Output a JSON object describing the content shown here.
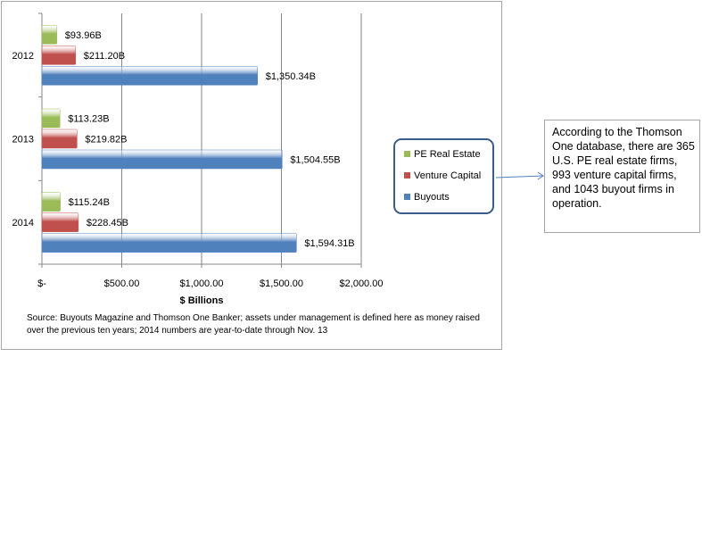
{
  "chart_data": {
    "type": "bar",
    "orientation": "horizontal",
    "categories": [
      "2012",
      "2013",
      "2014"
    ],
    "series": [
      {
        "name": "PE Real Estate",
        "color": "#9bbb59",
        "values": [
          93.96,
          113.23,
          115.24
        ],
        "labels": [
          "$93.96B",
          "$113.23B",
          "$115.24B"
        ]
      },
      {
        "name": "Venture Capital",
        "color": "#c0504d",
        "values": [
          211.2,
          219.82,
          228.45
        ],
        "labels": [
          "$211.20B",
          "$219.82B",
          "$228.45B"
        ]
      },
      {
        "name": "Buyouts",
        "color": "#4f81bd",
        "values": [
          1350.34,
          1504.55,
          1594.31
        ],
        "labels": [
          "$1,350.34B",
          "$1,504.55B",
          "$1,594.31B"
        ]
      }
    ],
    "xlim": [
      0,
      2000
    ],
    "xticks": [
      0,
      500,
      1000,
      1500,
      2000
    ],
    "xtick_labels": [
      "$-",
      "$500.00",
      "$1,000.00",
      "$1,500.00",
      "$2,000.00"
    ],
    "xlabel": "$ Billions",
    "grid": "vertical",
    "legend_position": "right"
  },
  "source_note": "Source: Buyouts  Magazine and Thomson One Banker; assets under management is defined here as money raised over the previous  ten years; 2014 numbers are year-to-date through Nov.  13",
  "callout_text": "According to the Thomson One database, there are 365 U.S. PE real estate firms, 993 venture capital firms, and 1043 buyout firms in operation."
}
